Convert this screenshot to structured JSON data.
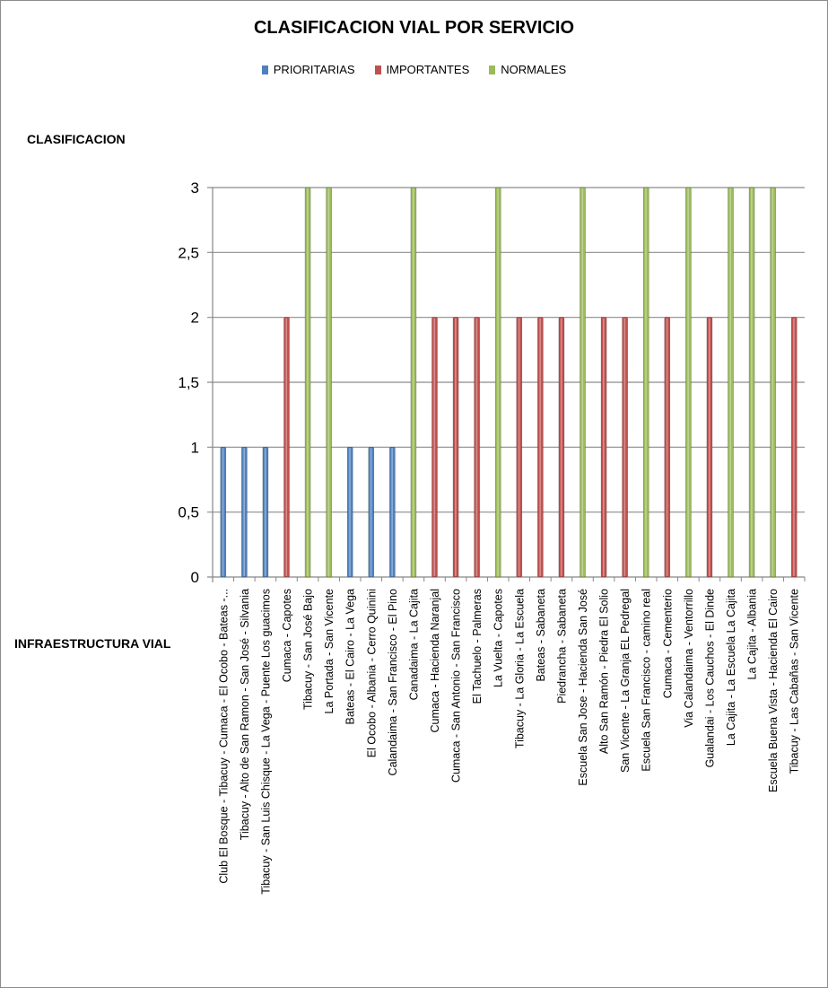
{
  "chart_data": {
    "type": "bar",
    "title": "CLASIFICACION VIAL POR SERVICIO",
    "ylabel": "CLASIFICACION",
    "xlabel": "INFRAESTRUCTURA VIAL",
    "ylim": [
      0,
      3
    ],
    "yticks": [
      "0",
      "0,5",
      "1",
      "1,5",
      "2",
      "2,5",
      "3"
    ],
    "grid": true,
    "legend_position": "top",
    "series": [
      {
        "name": "PRIORITARIAS",
        "color": "#4f81bd"
      },
      {
        "name": "IMPORTANTES",
        "color": "#c0504d"
      },
      {
        "name": "NORMALES",
        "color": "#9bbb59"
      }
    ],
    "categories": [
      "Club  El Bosque - Tibacuy - Cumaca - El Ocobo - Bateas -...",
      "Tibacuy - Alto de San Ramon - San José - Silvania",
      "Tibacuy - San Luis Chisque - La Vega - Puente Los guacimos",
      "Cumaca - Capotes",
      "Tibacuy - San José Bajo",
      "La Portada - San Vicente",
      "Bateas - El Cairo - La Vega",
      "El Ocobo - Albania - Cerro Quinini",
      "Calandaima - San Francisco - El Pino",
      "Canadaima - La Cajita",
      "Cumaca - Hacienda Naranjal",
      "Cumaca - San Antonio - San Francisco",
      "El Tachuelo - Palmeras",
      "La Vuelta - Capotes",
      "Tibacuy - La Gloria - La Escuela",
      "Bateas - Sabaneta",
      "Piedrancha - Sabaneta",
      "Escuela San Jose - Hacienda San José",
      "Alto San Ramón - Piedra El Solio",
      "San Vicente - La Granja EL Pedregal",
      "Escuela San Francisco - camino real",
      "Cumaca - Cementerio",
      "Via Calandaima - Ventorrillo",
      "Gualandai - Los Cauchos - El Dinde",
      "La Cajita - La Escuela La Cajita",
      "La Cajita - Albania",
      "Escuela Buena Vista - Hacienda El Cairo",
      "Tibacuy - Las Cabañas - San Vicente"
    ],
    "values": [
      1,
      1,
      1,
      2,
      3,
      3,
      1,
      1,
      1,
      3,
      2,
      2,
      2,
      3,
      2,
      2,
      2,
      3,
      2,
      2,
      3,
      2,
      3,
      2,
      3,
      3,
      3,
      2
    ],
    "series_index": [
      0,
      0,
      0,
      1,
      2,
      2,
      0,
      0,
      0,
      2,
      1,
      1,
      1,
      2,
      1,
      1,
      1,
      2,
      1,
      1,
      2,
      1,
      2,
      1,
      2,
      2,
      2,
      1
    ]
  }
}
